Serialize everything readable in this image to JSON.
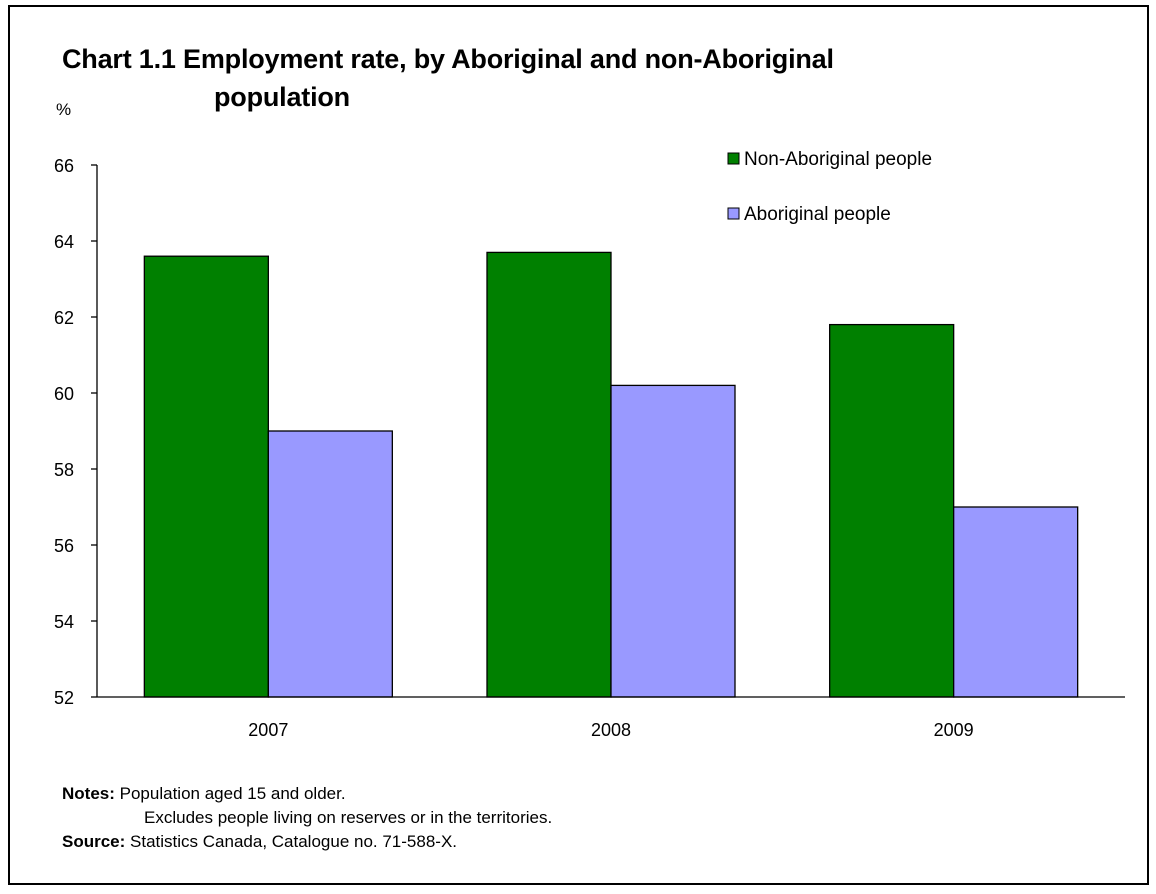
{
  "chart_data": {
    "type": "bar",
    "title_line1": "Chart 1.1 Employment rate, by Aboriginal and non-Aboriginal",
    "title_line2": "population",
    "ylabel": "%",
    "xlabel": "",
    "categories": [
      "2007",
      "2008",
      "2009"
    ],
    "series": [
      {
        "name": "Non-Aboriginal people",
        "color": "#008000",
        "values": [
          63.6,
          63.7,
          61.8
        ]
      },
      {
        "name": "Aboriginal people",
        "color": "#9999ff",
        "values": [
          59.0,
          60.2,
          57.0
        ]
      }
    ],
    "ylim": [
      52,
      66
    ],
    "yticks": [
      "52",
      "54",
      "56",
      "58",
      "60",
      "62",
      "64",
      "66"
    ],
    "grid": false,
    "legend_position": "top-right"
  },
  "notes": {
    "notes_label": "Notes:",
    "note_line1": "Population aged 15 and older.",
    "note_line2": "Excludes people living on reserves or in the territories.",
    "source_label": "Source:",
    "source_text": "Statistics Canada, Catalogue no. 71-588-X."
  }
}
